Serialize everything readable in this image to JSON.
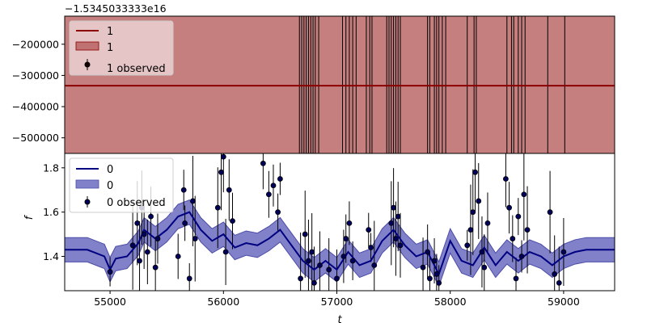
{
  "chart_data": [
    {
      "type": "line",
      "panel": "top",
      "offset_label": "−1.5345033333e16",
      "ylim": [
        -550000,
        -110000
      ],
      "yticks": [
        -500000,
        -400000,
        -300000,
        -200000
      ],
      "ytick_labels": [
        "−500000",
        "−400000",
        "−300000",
        "−200000"
      ],
      "series": [
        {
          "name": "1",
          "kind": "mean_line",
          "value": -333000,
          "color": "#8b0000"
        },
        {
          "name": "1",
          "kind": "band",
          "lower": -550000,
          "upper": -110000,
          "color": "#b35454"
        },
        {
          "name": "1 observed",
          "kind": "errorbar_points",
          "color": "#000000",
          "x": [
            56670,
            56690,
            56710,
            56730,
            56750,
            56770,
            56790,
            56810,
            56840,
            57050,
            57080,
            57110,
            57140,
            57170,
            57260,
            57290,
            57310,
            57440,
            57460,
            57480,
            57500,
            57520,
            57540,
            57560,
            57800,
            57820,
            57860,
            57880,
            57900,
            57930,
            57960,
            58150,
            58210,
            58230,
            58500,
            58540,
            58560,
            58600,
            58630,
            58660,
            58860,
            59010
          ]
        }
      ],
      "legend": {
        "placement": "top-left",
        "entries": [
          "1",
          "1",
          "1 observed"
        ]
      }
    },
    {
      "type": "line",
      "panel": "bottom",
      "xlabel": "t",
      "ylabel": "f",
      "xlim": [
        54600,
        59450
      ],
      "ylim": [
        1.245,
        1.865
      ],
      "xticks": [
        55000,
        56000,
        57000,
        58000,
        59000
      ],
      "xtick_labels": [
        "55000",
        "56000",
        "57000",
        "58000",
        "59000"
      ],
      "yticks": [
        1.4,
        1.6,
        1.8
      ],
      "ytick_labels": [
        "1.4",
        "1.6",
        "1.8"
      ],
      "series": [
        {
          "name": "0",
          "kind": "mean_line",
          "color": "#000080",
          "x": [
            54600,
            54800,
            54950,
            55000,
            55050,
            55150,
            55250,
            55300,
            55400,
            55500,
            55600,
            55700,
            55800,
            55900,
            56000,
            56100,
            56200,
            56300,
            56400,
            56500,
            56600,
            56700,
            56800,
            56900,
            57000,
            57100,
            57200,
            57300,
            57400,
            57500,
            57600,
            57700,
            57800,
            57900,
            58000,
            58100,
            58200,
            58300,
            58400,
            58500,
            58600,
            58700,
            58800,
            58900,
            59000,
            59100,
            59200,
            59300,
            59450
          ],
          "y": [
            1.43,
            1.43,
            1.4,
            1.34,
            1.39,
            1.4,
            1.46,
            1.52,
            1.48,
            1.52,
            1.58,
            1.6,
            1.52,
            1.47,
            1.5,
            1.44,
            1.46,
            1.45,
            1.48,
            1.52,
            1.45,
            1.38,
            1.34,
            1.38,
            1.34,
            1.42,
            1.36,
            1.38,
            1.47,
            1.52,
            1.45,
            1.4,
            1.42,
            1.32,
            1.47,
            1.38,
            1.36,
            1.44,
            1.36,
            1.42,
            1.38,
            1.42,
            1.4,
            1.36,
            1.4,
            1.42,
            1.43,
            1.43,
            1.43
          ]
        },
        {
          "name": "0",
          "kind": "band",
          "color": "#6b6bbf",
          "halfwidth": 0.055
        },
        {
          "name": "0 observed",
          "kind": "errorbar_points",
          "color": "#000000",
          "marker_color": "#00005a",
          "x": [
            55000,
            55200,
            55240,
            55260,
            55280,
            55300,
            55330,
            55360,
            55400,
            55420,
            55600,
            55650,
            55660,
            55700,
            55730,
            55750,
            55950,
            55980,
            56000,
            56020,
            56050,
            56080,
            56350,
            56400,
            56440,
            56480,
            56500,
            56680,
            56720,
            56750,
            56780,
            56800,
            56850,
            56930,
            57000,
            57060,
            57080,
            57110,
            57140,
            57280,
            57300,
            57330,
            57480,
            57500,
            57520,
            57540,
            57560,
            57760,
            57800,
            57820,
            57860,
            57880,
            57900,
            58150,
            58180,
            58200,
            58220,
            58250,
            58280,
            58300,
            58330,
            58490,
            58520,
            58550,
            58580,
            58600,
            58630,
            58650,
            58680,
            58880,
            58920,
            58960,
            59000
          ],
          "y": [
            1.33,
            1.45,
            1.55,
            1.38,
            1.62,
            1.5,
            1.42,
            1.58,
            1.35,
            1.48,
            1.4,
            1.7,
            1.55,
            1.3,
            1.65,
            1.48,
            1.62,
            1.78,
            1.85,
            1.42,
            1.7,
            1.56,
            1.82,
            1.68,
            1.72,
            1.6,
            1.75,
            1.3,
            1.5,
            1.38,
            1.42,
            1.28,
            1.36,
            1.34,
            1.3,
            1.4,
            1.48,
            1.55,
            1.38,
            1.52,
            1.44,
            1.36,
            1.55,
            1.62,
            1.48,
            1.58,
            1.45,
            1.35,
            1.42,
            1.3,
            1.38,
            1.32,
            1.28,
            1.45,
            1.52,
            1.6,
            1.78,
            1.65,
            1.42,
            1.35,
            1.55,
            1.75,
            1.62,
            1.48,
            1.3,
            1.58,
            1.4,
            1.68,
            1.52,
            1.6,
            1.32,
            1.28,
            1.42
          ]
        }
      ],
      "legend": {
        "placement": "top-left",
        "entries": [
          "0",
          "0",
          "0 observed"
        ]
      }
    }
  ]
}
